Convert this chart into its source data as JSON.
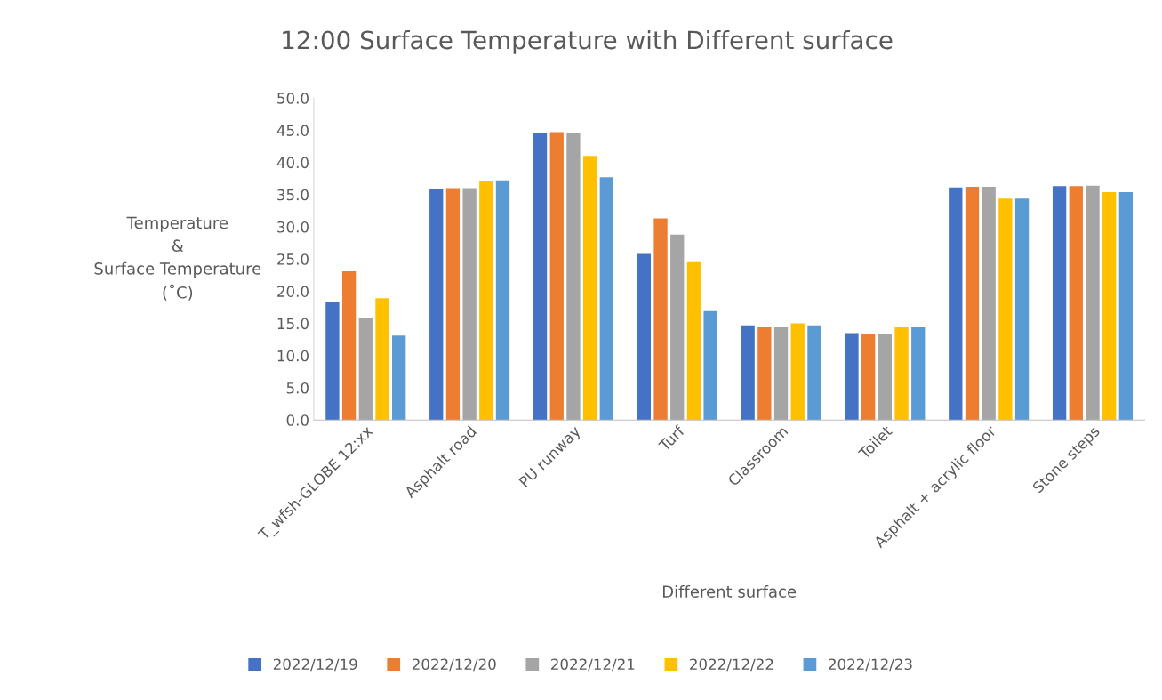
{
  "chart_data": {
    "type": "bar",
    "title": "12:00 Surface Temperature with Different surface",
    "xlabel": "Different surface",
    "ylabel": "Temperature\n&\nSurface Temperature\n(˚C)",
    "categories": [
      "T_wfsh-GLOBE 12:xx",
      "Asphalt road",
      "PU runway",
      "Turf",
      "Classroom",
      "Toilet",
      "Asphalt + acrylic floor",
      "Stone steps"
    ],
    "series": [
      {
        "name": "2022/12/19",
        "color": "#4472c4",
        "values": [
          18.3,
          35.9,
          44.6,
          25.8,
          14.7,
          13.5,
          36.1,
          36.3
        ]
      },
      {
        "name": "2022/12/20",
        "color": "#ed7d31",
        "values": [
          23.1,
          36.0,
          44.7,
          31.3,
          14.4,
          13.4,
          36.2,
          36.3
        ]
      },
      {
        "name": "2022/12/21",
        "color": "#a5a5a5",
        "values": [
          15.9,
          36.0,
          44.6,
          28.8,
          14.4,
          13.4,
          36.2,
          36.4
        ]
      },
      {
        "name": "2022/12/22",
        "color": "#ffc000",
        "values": [
          18.9,
          37.1,
          41.0,
          24.5,
          15.0,
          14.4,
          34.4,
          35.4
        ]
      },
      {
        "name": "2022/12/23",
        "color": "#5b9bd5",
        "values": [
          13.1,
          37.2,
          37.7,
          16.9,
          14.7,
          14.4,
          34.4,
          35.4
        ]
      }
    ],
    "ylim": [
      0,
      50
    ],
    "yticks": [
      {
        "value": 0,
        "label": "0.0"
      },
      {
        "value": 5,
        "label": "5.0"
      },
      {
        "value": 10,
        "label": "10.0"
      },
      {
        "value": 15,
        "label": "15.0"
      },
      {
        "value": 20,
        "label": "20.0"
      },
      {
        "value": 25,
        "label": "25.0"
      },
      {
        "value": 30,
        "label": "30.0"
      },
      {
        "value": 35,
        "label": "35.0"
      },
      {
        "value": 40,
        "label": "40.0"
      },
      {
        "value": 45,
        "label": "45.0"
      },
      {
        "value": 50,
        "label": "50.0"
      }
    ],
    "grid": false,
    "legend": "bottom"
  }
}
